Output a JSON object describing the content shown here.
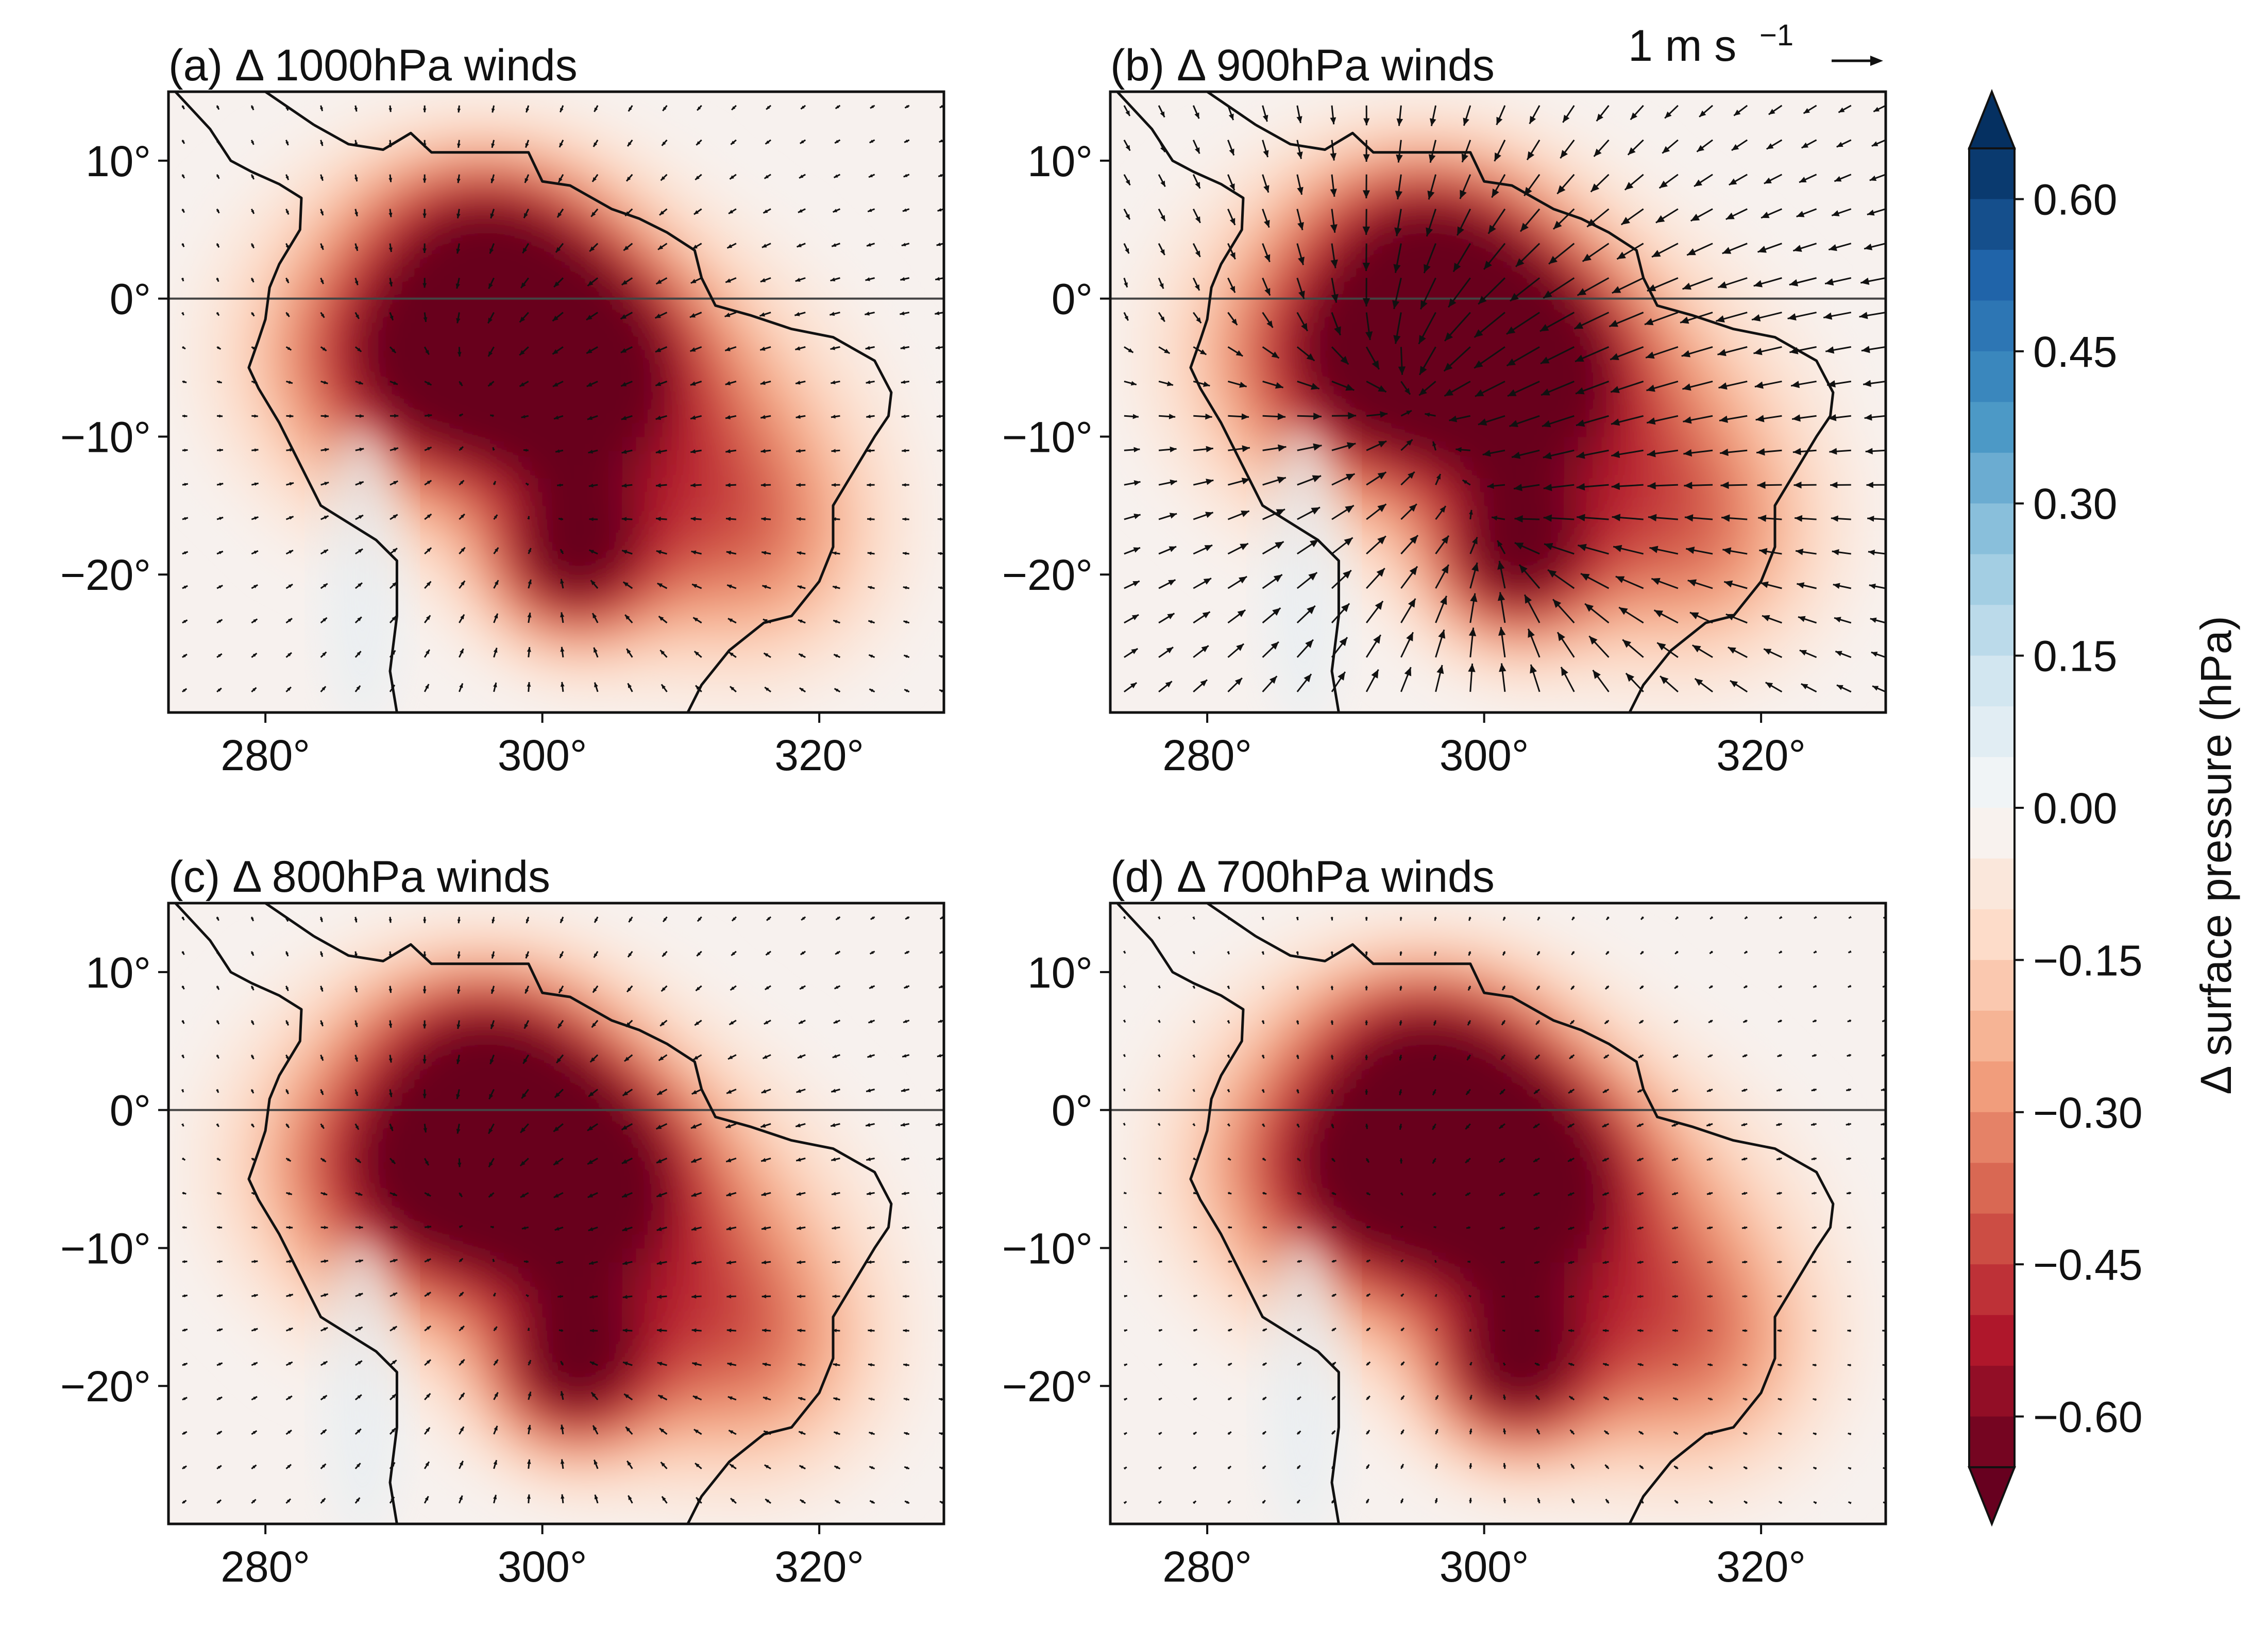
{
  "chart_data": {
    "type": "map-contour-quiver",
    "lon_range": [
      273,
      329
    ],
    "lat_range": [
      -30,
      15
    ],
    "x_ticks": [
      "280°",
      "300°",
      "320°"
    ],
    "x_tick_values": [
      280,
      300,
      320
    ],
    "y_ticks": [
      "10°",
      "0°",
      "−10°",
      "−20°"
    ],
    "y_tick_values": [
      10,
      0,
      -10,
      -20
    ],
    "equator_line": true,
    "reference_vector": {
      "label": "1 m s",
      "exponent": "−1",
      "magnitude": 1
    },
    "panels": [
      {
        "id": "a",
        "title": "(a) Δ 1000hPa winds",
        "vector_scale": 0.55,
        "convergence_strength": 0.5
      },
      {
        "id": "b",
        "title": "(b) Δ 900hPa winds",
        "vector_scale": 1.6,
        "convergence_strength": 1.0
      },
      {
        "id": "c",
        "title": "(c) Δ 800hPa winds",
        "vector_scale": 0.5,
        "convergence_strength": 0.45
      },
      {
        "id": "d",
        "title": "(d) Δ 700hPa winds",
        "vector_scale": 0.3,
        "convergence_strength": 0.3
      }
    ],
    "colorbar": {
      "label": "Δ surface pressure (hPa)",
      "ticks": [
        "0.60",
        "0.45",
        "0.30",
        "0.15",
        "0.00",
        "−0.15",
        "−0.30",
        "−0.45",
        "−0.60"
      ],
      "tick_values": [
        0.6,
        0.45,
        0.3,
        0.15,
        0.0,
        -0.15,
        -0.3,
        -0.45,
        -0.6
      ],
      "range": [
        -0.65,
        0.65
      ],
      "extend": "both",
      "colormap": "RdBu",
      "colors": [
        "#67001f",
        "#b2182b",
        "#d6604d",
        "#f4a582",
        "#fddbc7",
        "#f7f7f7",
        "#d1e5f0",
        "#92c5de",
        "#4393c3",
        "#2166ac",
        "#053061"
      ]
    },
    "anomaly_field": {
      "description": "Negative surface pressure anomaly over tropical South America, strongest over western Amazon and a secondary center near 302°E 20°S",
      "centers": [
        {
          "lon": 293,
          "lat": -4,
          "value": -0.62
        },
        {
          "lon": 300,
          "lat": -2,
          "value": -0.55
        },
        {
          "lon": 302,
          "lat": -19,
          "value": -0.58
        },
        {
          "lon": 310,
          "lat": -10,
          "value": -0.35
        }
      ]
    }
  }
}
